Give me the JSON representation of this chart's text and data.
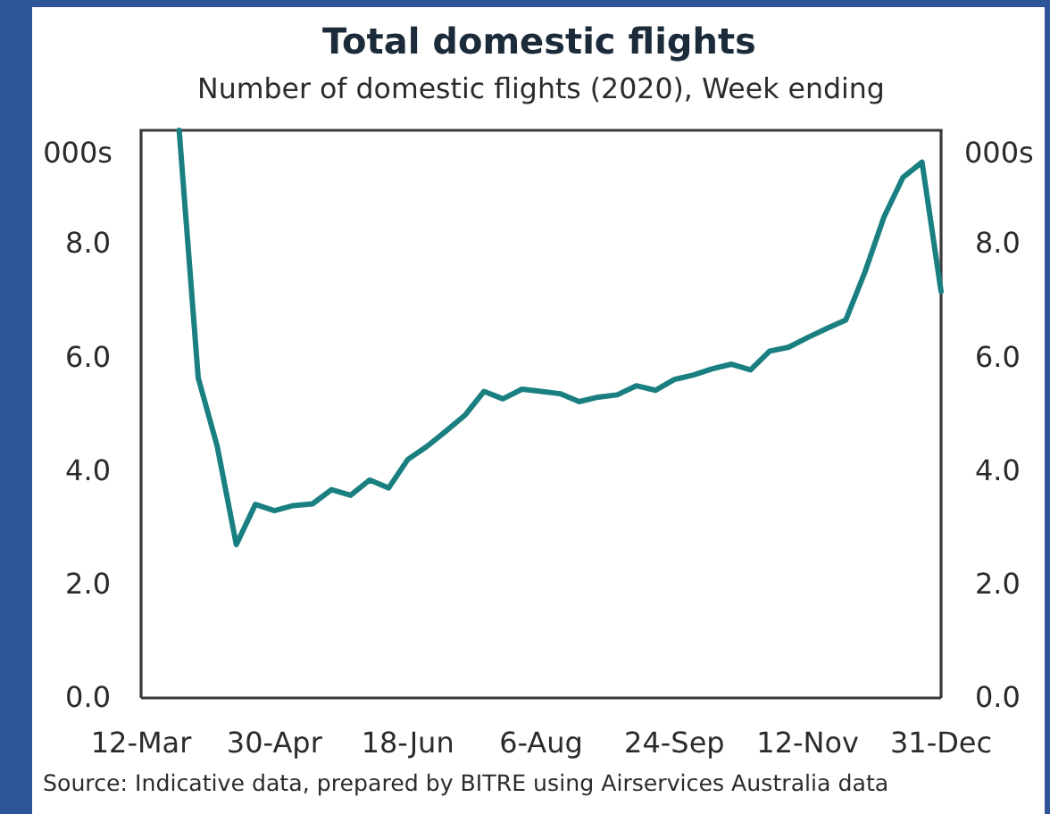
{
  "chart_data": {
    "type": "line",
    "title": "Total domestic flights",
    "subtitle": "Number of domestic flights (2020), Week ending",
    "ylabel": "000s",
    "y2label": "000s",
    "x": [
      "2020-03-26",
      "2020-04-02",
      "2020-04-09",
      "2020-04-16",
      "2020-04-23",
      "2020-04-30",
      "2020-05-07",
      "2020-05-14",
      "2020-05-21",
      "2020-05-28",
      "2020-06-04",
      "2020-06-11",
      "2020-06-18",
      "2020-06-25",
      "2020-07-02",
      "2020-07-09",
      "2020-07-16",
      "2020-07-23",
      "2020-07-30",
      "2020-08-06",
      "2020-08-13",
      "2020-08-20",
      "2020-08-27",
      "2020-09-03",
      "2020-09-10",
      "2020-09-17",
      "2020-09-24",
      "2020-10-01",
      "2020-10-08",
      "2020-10-15",
      "2020-10-22",
      "2020-10-29",
      "2020-11-05",
      "2020-11-12",
      "2020-11-19",
      "2020-11-26",
      "2020-12-03",
      "2020-12-10",
      "2020-12-17",
      "2020-12-24",
      "2020-12-31"
    ],
    "series": [
      {
        "color": "#1a7f80",
        "values": [
          10.0,
          5.64,
          4.43,
          2.7,
          3.41,
          3.3,
          3.39,
          3.42,
          3.67,
          3.57,
          3.84,
          3.7,
          4.2,
          4.43,
          4.7,
          4.98,
          5.4,
          5.27,
          5.44,
          5.4,
          5.36,
          5.22,
          5.3,
          5.34,
          5.5,
          5.42,
          5.61,
          5.69,
          5.8,
          5.88,
          5.78,
          6.11,
          6.18,
          6.35,
          6.51,
          6.66,
          7.5,
          8.47,
          9.17,
          9.44,
          7.16
        ]
      }
    ],
    "xlim": [
      "2020-03-12",
      "2020-12-31"
    ],
    "xticks": [
      {
        "value": "2020-03-12",
        "label": "12-Mar"
      },
      {
        "value": "2020-04-30",
        "label": "30-Apr"
      },
      {
        "value": "2020-06-18",
        "label": "18-Jun"
      },
      {
        "value": "2020-08-06",
        "label": "6-Aug"
      },
      {
        "value": "2020-09-24",
        "label": "24-Sep"
      },
      {
        "value": "2020-11-12",
        "label": "12-Nov"
      },
      {
        "value": "2020-12-31",
        "label": "31-Dec"
      }
    ],
    "ylim": [
      0,
      10
    ],
    "yticks": [
      {
        "value": 0,
        "label": "0.0"
      },
      {
        "value": 2,
        "label": "2.0"
      },
      {
        "value": 4,
        "label": "4.0"
      },
      {
        "value": 6,
        "label": "6.0"
      },
      {
        "value": 8,
        "label": "8.0"
      }
    ],
    "y2lim": [
      0,
      10
    ],
    "y2ticks": [
      {
        "value": 0,
        "label": "0.0"
      },
      {
        "value": 2,
        "label": "2.0"
      },
      {
        "value": 4,
        "label": "4.0"
      },
      {
        "value": 6,
        "label": "6.0"
      },
      {
        "value": 8,
        "label": "8.0"
      }
    ],
    "annotations": [
      "Source: Indicative data, prepared by BITRE using Airservices Australia data"
    ]
  }
}
